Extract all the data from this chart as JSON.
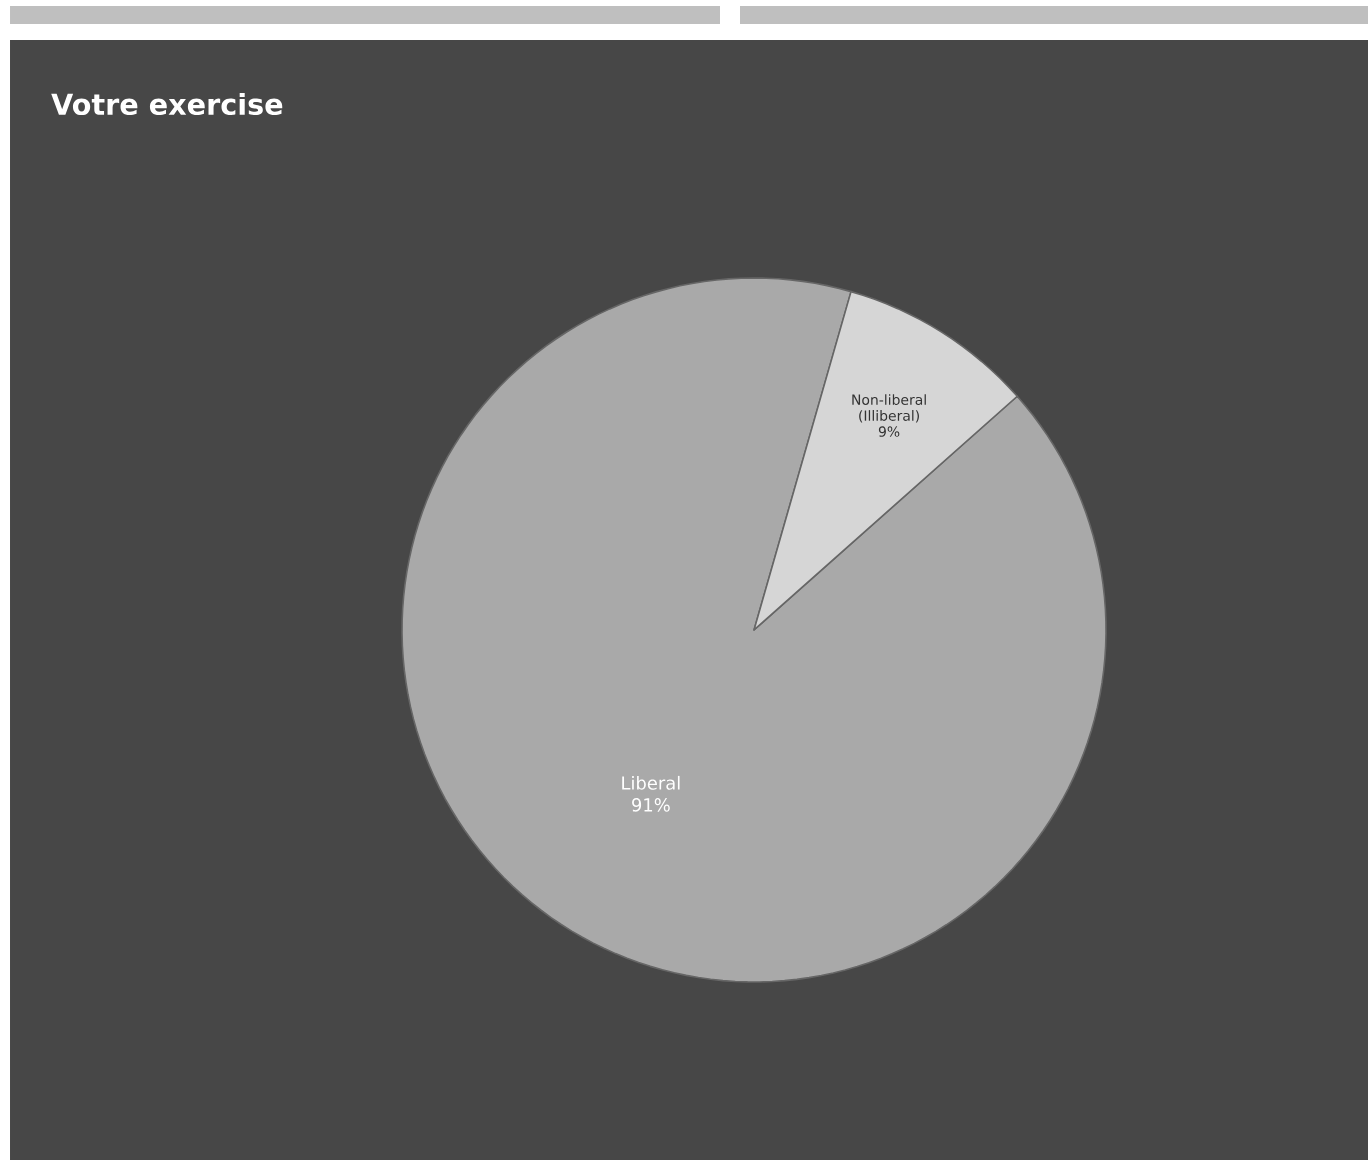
{
  "chart_data": {
    "type": "pie",
    "title": "Votre exercise",
    "categories": [
      "Liberal",
      "Non-liberal (Illiberal)"
    ],
    "values": [
      91,
      9
    ],
    "value_labels": [
      "91%",
      "9%"
    ],
    "colors": [
      "#a9a9a9",
      "#d6d6d6"
    ]
  }
}
